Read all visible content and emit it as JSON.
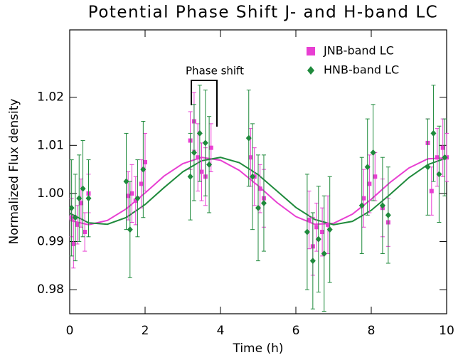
{
  "chart_data": {
    "type": "scatter",
    "title": "Potential Phase Shift J- and H-band LC",
    "x_label": "Time (h)",
    "y_label": "Normalized Flux density",
    "annotation": "Phase shift",
    "xlim": [
      0,
      10
    ],
    "xticks": [
      0,
      2,
      4,
      6,
      8,
      10
    ],
    "ylim": [
      0.975,
      1.034
    ],
    "yticks": [
      0.98,
      0.99,
      {
        "value": 1,
        "label": "1.00"
      },
      1.01,
      1.02
    ],
    "legend_position": "top-right",
    "series": [
      {
        "name": "JNB-band LC",
        "color": "#e83fd2",
        "marker": "square",
        "x": [
          0.05,
          0.1,
          0.2,
          0.3,
          0.4,
          0.5,
          1.55,
          1.65,
          1.75,
          1.9,
          2.0,
          3.2,
          3.3,
          3.4,
          3.5,
          3.6,
          3.75,
          4.8,
          4.9,
          5.05,
          5.15,
          6.35,
          6.45,
          6.55,
          6.7,
          6.85,
          7.8,
          7.95,
          8.1,
          8.3,
          8.45,
          9.5,
          9.6,
          9.75,
          9.9,
          10.0
        ],
        "values": [
          0.995,
          0.9895,
          0.9935,
          0.998,
          0.992,
          1.0,
          0.9995,
          1.0,
          0.9985,
          1.002,
          1.0065,
          1.011,
          1.015,
          1.0075,
          1.0045,
          1.0035,
          1.0095,
          1.0075,
          1.0035,
          1.001,
          0.999,
          0.9945,
          0.989,
          0.993,
          0.992,
          0.9935,
          0.999,
          1.002,
          1.0035,
          0.997,
          0.994,
          1.0105,
          1.0005,
          1.0075,
          1.0095,
          1.0075
        ],
        "errors": [
          0.004,
          0.005,
          0.004,
          0.005,
          0.004,
          0.004,
          0.005,
          0.006,
          0.005,
          0.005,
          0.006,
          0.006,
          0.006,
          0.007,
          0.006,
          0.006,
          0.005,
          0.006,
          0.006,
          0.005,
          0.006,
          0.006,
          0.006,
          0.005,
          0.005,
          0.006,
          0.006,
          0.006,
          0.005,
          0.006,
          0.005,
          0.005,
          0.005,
          0.006,
          0.006,
          0.005
        ]
      },
      {
        "name": "HNB-band LC",
        "color": "#1f8a3c",
        "marker": "diamond",
        "x": [
          0.05,
          0.15,
          0.25,
          0.35,
          0.5,
          1.5,
          1.6,
          1.8,
          1.95,
          3.2,
          3.3,
          3.45,
          3.6,
          3.7,
          4.75,
          4.85,
          5.0,
          5.15,
          6.3,
          6.45,
          6.6,
          6.75,
          6.9,
          7.75,
          7.9,
          8.05,
          8.3,
          8.45,
          9.5,
          9.65,
          9.8,
          9.95
        ],
        "values": [
          0.997,
          0.995,
          0.999,
          1.001,
          0.999,
          1.0025,
          0.9925,
          0.999,
          1.005,
          1.0035,
          1.0085,
          1.0125,
          1.0105,
          1.006,
          1.0115,
          1.0035,
          0.997,
          0.998,
          0.992,
          0.986,
          0.9905,
          0.9875,
          0.9925,
          0.9975,
          1.0055,
          1.0085,
          0.9975,
          0.9955,
          1.0055,
          1.0125,
          1.004,
          1.0075
        ],
        "errors": [
          0.01,
          0.009,
          0.009,
          0.01,
          0.008,
          0.01,
          0.01,
          0.008,
          0.01,
          0.009,
          0.01,
          0.01,
          0.011,
          0.01,
          0.01,
          0.011,
          0.011,
          0.01,
          0.012,
          0.01,
          0.011,
          0.012,
          0.011,
          0.01,
          0.01,
          0.01,
          0.01,
          0.01,
          0.01,
          0.01,
          0.01,
          0.008
        ]
      }
    ],
    "fits": [
      {
        "color": "#e83fd2",
        "x": [
          0,
          0.5,
          1,
          1.5,
          2,
          2.5,
          3,
          3.5,
          4,
          4.5,
          5,
          5.5,
          6,
          6.5,
          7,
          7.5,
          8,
          8.5,
          9,
          9.5,
          10
        ],
        "values": [
          0.9944,
          0.9935,
          0.9944,
          0.9968,
          1.0001,
          1.0036,
          1.0062,
          1.0075,
          1.0069,
          1.0048,
          1.0016,
          0.9981,
          0.9952,
          0.9936,
          0.9938,
          0.9957,
          0.9988,
          1.0023,
          1.0053,
          1.0072,
          1.0074
        ]
      },
      {
        "color": "#1f8a3c",
        "x": [
          0,
          0.5,
          1,
          1.5,
          2,
          2.5,
          3,
          3.5,
          4,
          4.5,
          5,
          5.5,
          6,
          6.5,
          7,
          7.5,
          8,
          8.5,
          9,
          9.5,
          10
        ],
        "values": [
          0.9959,
          0.9939,
          0.9936,
          0.995,
          0.9977,
          1.0012,
          1.0045,
          1.0068,
          1.0075,
          1.0064,
          1.0039,
          1.0005,
          0.9971,
          0.9946,
          0.9935,
          0.9942,
          0.9965,
          0.9998,
          1.0033,
          1.006,
          1.0074
        ]
      }
    ]
  }
}
